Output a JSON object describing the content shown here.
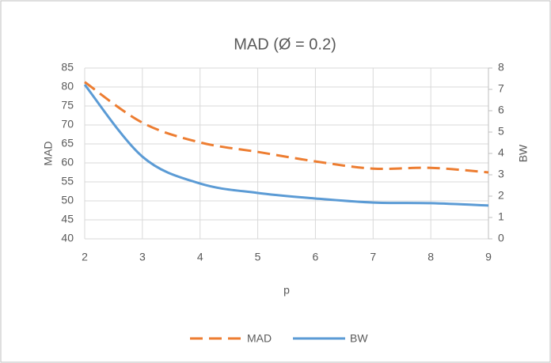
{
  "chart_data": {
    "type": "line",
    "title": "MAD (Ø = 0.2)",
    "x_label": "p",
    "y_label": "MAD",
    "y2_label": "BW",
    "x": [
      2,
      3,
      4,
      5,
      6,
      7,
      8,
      9
    ],
    "xlim": [
      2,
      9
    ],
    "xticks": [
      2,
      3,
      4,
      5,
      6,
      7,
      8,
      9
    ],
    "ylim": [
      40,
      85
    ],
    "yticks": [
      40,
      45,
      50,
      55,
      60,
      65,
      70,
      75,
      80,
      85
    ],
    "y2lim": [
      0,
      8
    ],
    "y2ticks": [
      0,
      1,
      2,
      3,
      4,
      5,
      6,
      7,
      8
    ],
    "grid": true,
    "legend": "bottom",
    "series": [
      {
        "name": "MAD",
        "color": "#ed7d31",
        "dashed": true,
        "values": [
          81.3,
          70.6,
          65.4,
          62.9,
          60.4,
          58.5,
          58.7,
          57.5
        ]
      },
      {
        "name": "BW",
        "color": "#5b9bd5",
        "dashed": false,
        "axis": "y2",
        "values": [
          7.22,
          3.85,
          2.59,
          2.15,
          1.89,
          1.7,
          1.67,
          1.56
        ]
      }
    ]
  }
}
